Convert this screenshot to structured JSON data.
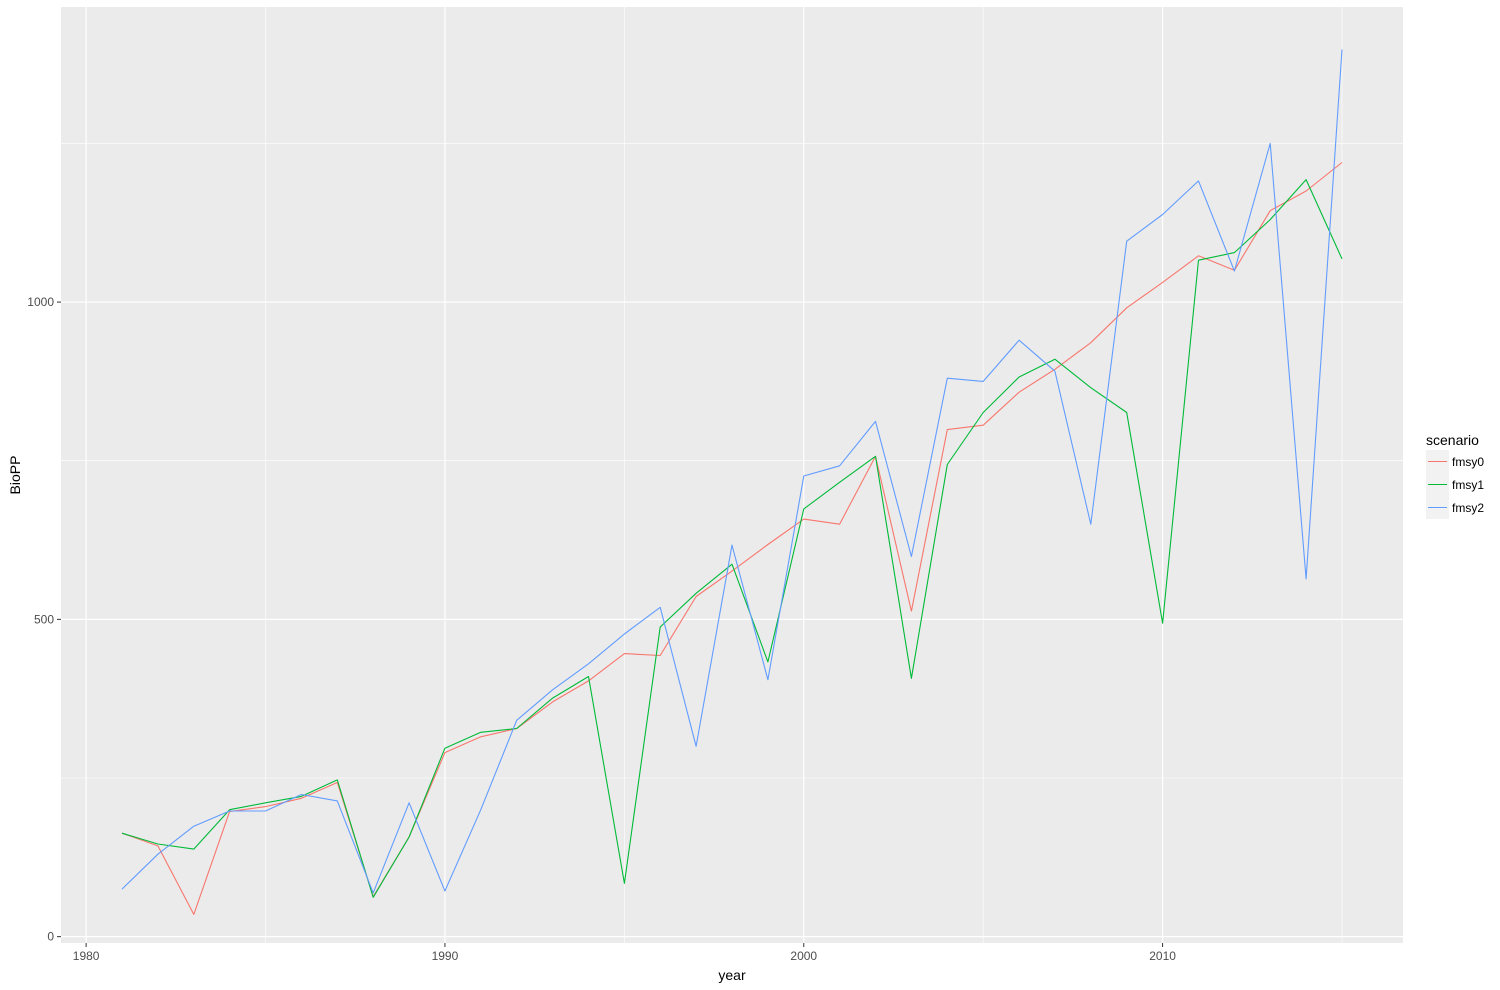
{
  "chart_data": {
    "type": "line",
    "title": "",
    "xlabel": "year",
    "ylabel": "BioPP",
    "xlim": [
      1979.3,
      2016.7
    ],
    "ylim": [
      -10,
      1465
    ],
    "x_ticks": [
      1980,
      1990,
      2000,
      2010
    ],
    "x_tick_labels": [
      "1980",
      "1990",
      "2000",
      "2010"
    ],
    "y_ticks": [
      0,
      500,
      1000
    ],
    "y_tick_labels": [
      "0",
      "500",
      "1000"
    ],
    "grid": true,
    "panel_background": "#ebebeb",
    "legend": {
      "title": "scenario",
      "position": "right"
    },
    "x": [
      1981,
      1982,
      1983,
      1984,
      1985,
      1986,
      1987,
      1988,
      1989,
      1990,
      1991,
      1992,
      1993,
      1994,
      1995,
      1996,
      1997,
      1998,
      1999,
      2000,
      2001,
      2002,
      2003,
      2004,
      2005,
      2006,
      2007,
      2008,
      2009,
      2010,
      2011,
      2012,
      2013,
      2014,
      2015
    ],
    "series": [
      {
        "name": "fmsy0",
        "color": "#f8766d",
        "values": [
          163,
          143,
          35,
          197,
          205,
          218,
          243,
          63,
          157,
          290,
          315,
          328,
          370,
          403,
          446,
          443,
          536,
          576,
          618,
          658,
          650,
          757,
          513,
          799,
          806,
          858,
          894,
          936,
          991,
          1031,
          1073,
          1050,
          1144,
          1175,
          1220
        ]
      },
      {
        "name": "fmsy1",
        "color": "#00ba38",
        "values": [
          163,
          146,
          138,
          200,
          211,
          221,
          247,
          62,
          157,
          297,
          322,
          328,
          376,
          410,
          84,
          488,
          541,
          587,
          433,
          674,
          716,
          757,
          407,
          744,
          826,
          882,
          910,
          865,
          826,
          494,
          1066,
          1078,
          1130,
          1193,
          1068
        ]
      },
      {
        "name": "fmsy2",
        "color": "#619cff",
        "values": [
          75,
          130,
          174,
          198,
          198,
          224,
          214,
          69,
          211,
          72,
          200,
          341,
          389,
          430,
          477,
          519,
          300,
          617,
          405,
          726,
          742,
          812,
          599,
          880,
          875,
          940,
          891,
          650,
          1096,
          1138,
          1191,
          1049,
          1250,
          564,
          1398
        ]
      }
    ]
  }
}
